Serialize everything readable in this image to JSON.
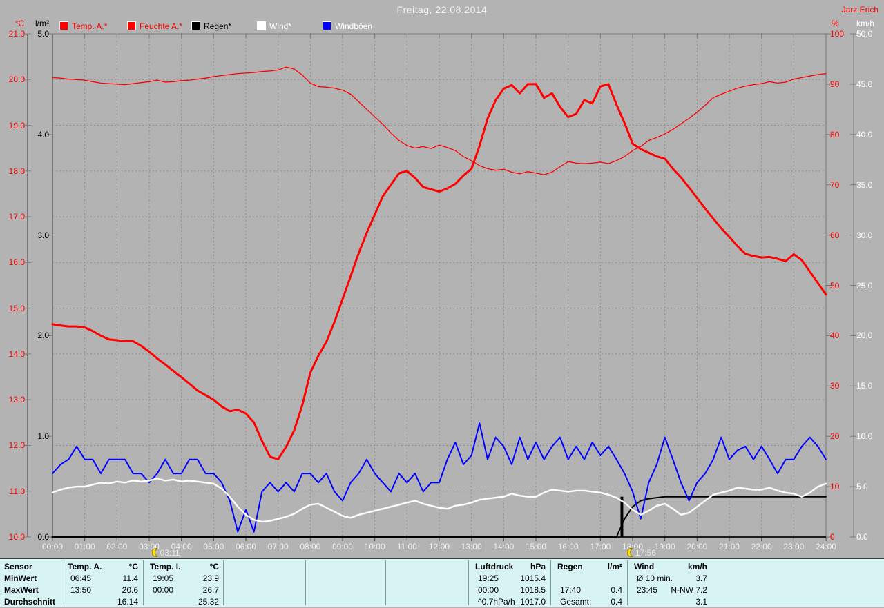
{
  "window": {
    "title": "Freitag, 22.08.2014",
    "author": "Jarz Erich"
  },
  "legend": {
    "items": [
      {
        "label": "Temp. A.*",
        "swatch": "#ff0000",
        "text_color": "#ff0000"
      },
      {
        "label": "Feuchte A.*",
        "swatch": "#ff0000",
        "text_color": "#ff0000"
      },
      {
        "label": "Regen*",
        "swatch": "#000000",
        "text_color": "#000000"
      },
      {
        "label": "Wind*",
        "swatch": "#ffffff",
        "text_color": "#ffffff"
      },
      {
        "label": "Windböen",
        "swatch": "#0000ff",
        "text_color": "#ffffff"
      }
    ]
  },
  "axes": {
    "tempC": {
      "unit": "°C",
      "min": 10,
      "max": 21,
      "step": 1,
      "decimals": 1,
      "color": "#ff0000"
    },
    "rain_lm2": {
      "unit": "l/m²",
      "min": 0,
      "max": 5,
      "step": 1,
      "decimals": 1,
      "color": "#000000"
    },
    "humidity_pct": {
      "unit": "%",
      "min": 0,
      "max": 100,
      "step": 10,
      "decimals": 0,
      "color": "#ff0000"
    },
    "wind_kmh": {
      "unit": "km/h",
      "min": 0,
      "max": 50,
      "step": 5,
      "decimals": 1,
      "color": "#ffffff"
    }
  },
  "x_axis": {
    "hour_labels": [
      "00:00",
      "01:00",
      "02:00",
      "03:00",
      "04:00",
      "05:00",
      "06:00",
      "07:00",
      "08:00",
      "09:00",
      "10:00",
      "11:00",
      "12:00",
      "13:00",
      "14:00",
      "15:00",
      "16:00",
      "17:00",
      "18:00",
      "19:00",
      "20:00",
      "21:00",
      "22:00",
      "23:00",
      "24:00"
    ],
    "markers": [
      {
        "time": "03:11"
      },
      {
        "time": "17:56"
      }
    ]
  },
  "chart_data": {
    "type": "line",
    "title": "Freitag, 22.08.2014",
    "x_unit": "hours",
    "x_range": [
      0,
      24
    ],
    "x_step_hours": 0.25,
    "grid": true,
    "series": [
      {
        "name": "Feuchte A.",
        "axis": "humidity_pct",
        "color": "#ff0000",
        "width": 1.3,
        "values": [
          91.3,
          91.2,
          91.0,
          90.9,
          90.8,
          90.5,
          90.2,
          90.1,
          90.0,
          89.9,
          90.1,
          90.3,
          90.5,
          90.8,
          90.4,
          90.5,
          90.7,
          90.8,
          91.0,
          91.2,
          91.5,
          91.7,
          91.9,
          92.1,
          92.2,
          92.3,
          92.5,
          92.6,
          92.8,
          93.4,
          93.0,
          91.8,
          90.2,
          89.5,
          89.4,
          89.2,
          88.8,
          88.0,
          86.5,
          85.0,
          83.5,
          82.0,
          80.3,
          78.8,
          77.8,
          77.3,
          77.6,
          77.2,
          77.9,
          77.4,
          76.8,
          75.6,
          74.8,
          73.8,
          73.2,
          72.9,
          73.1,
          72.5,
          72.2,
          72.6,
          72.3,
          72.0,
          72.5,
          73.6,
          74.6,
          74.3,
          74.2,
          74.3,
          74.5,
          74.2,
          74.8,
          75.6,
          76.8,
          77.6,
          78.8,
          79.4,
          80.1,
          81.0,
          82.1,
          83.2,
          84.4,
          85.8,
          87.3,
          88.0,
          88.6,
          89.2,
          89.6,
          89.9,
          90.1,
          90.5,
          90.2,
          90.4,
          91.0,
          91.3,
          91.6,
          91.9,
          92.1
        ]
      },
      {
        "name": "Regen (kumuliert)",
        "axis": "rain_lm2",
        "color": "#000000",
        "width": 2,
        "values": [
          0,
          0,
          0,
          0,
          0,
          0,
          0,
          0,
          0,
          0,
          0,
          0,
          0,
          0,
          0,
          0,
          0,
          0,
          0,
          0,
          0,
          0,
          0,
          0,
          0,
          0,
          0,
          0,
          0,
          0,
          0,
          0,
          0,
          0,
          0,
          0,
          0,
          0,
          0,
          0,
          0,
          0,
          0,
          0,
          0,
          0,
          0,
          0,
          0,
          0,
          0,
          0,
          0,
          0,
          0,
          0,
          0,
          0,
          0,
          0,
          0,
          0,
          0,
          0,
          0,
          0,
          0,
          0,
          0,
          0,
          0,
          0.18,
          0.3,
          0.36,
          0.38,
          0.39,
          0.4,
          0.4,
          0.4,
          0.4,
          0.4,
          0.4,
          0.4,
          0.4,
          0.4,
          0.4,
          0.4,
          0.4,
          0.4,
          0.4,
          0.4,
          0.4,
          0.4,
          0.4,
          0.4,
          0.4,
          0.4
        ]
      },
      {
        "name": "Windböen",
        "axis": "wind_kmh",
        "color": "#0000ff",
        "width": 2,
        "values": [
          6.3,
          7.2,
          7.7,
          9.0,
          7.7,
          7.7,
          6.3,
          7.7,
          7.7,
          7.7,
          6.3,
          6.3,
          5.4,
          6.3,
          7.7,
          6.3,
          6.3,
          7.7,
          7.7,
          6.3,
          6.3,
          5.4,
          3.6,
          0.5,
          2.7,
          0.5,
          4.5,
          5.4,
          4.5,
          5.4,
          4.5,
          6.3,
          6.3,
          5.4,
          6.3,
          4.5,
          3.6,
          5.4,
          6.3,
          7.7,
          6.3,
          5.4,
          4.5,
          6.3,
          5.4,
          6.3,
          4.5,
          5.4,
          5.4,
          7.7,
          9.4,
          7.2,
          8.1,
          11.3,
          7.7,
          9.9,
          9.0,
          7.2,
          9.9,
          7.7,
          9.4,
          7.7,
          9.0,
          9.9,
          7.7,
          9.0,
          7.7,
          9.4,
          8.1,
          9.0,
          7.7,
          6.3,
          4.5,
          1.8,
          5.4,
          7.2,
          9.9,
          7.7,
          5.4,
          3.6,
          5.4,
          6.3,
          7.7,
          9.9,
          7.7,
          8.6,
          9.0,
          7.7,
          9.0,
          7.7,
          6.3,
          7.7,
          7.7,
          9.0,
          9.9,
          9.0,
          7.7
        ]
      },
      {
        "name": "Wind",
        "axis": "wind_kmh",
        "color": "#ffffff",
        "width": 2.4,
        "values": [
          4.4,
          4.7,
          4.9,
          5.0,
          5.0,
          5.2,
          5.4,
          5.3,
          5.5,
          5.4,
          5.6,
          5.5,
          5.6,
          5.8,
          5.6,
          5.7,
          5.5,
          5.6,
          5.5,
          5.4,
          5.3,
          4.8,
          4.0,
          3.0,
          2.2,
          1.7,
          1.5,
          1.6,
          1.8,
          2.0,
          2.3,
          2.8,
          3.2,
          3.3,
          2.9,
          2.5,
          2.1,
          1.9,
          2.2,
          2.4,
          2.6,
          2.8,
          3.0,
          3.2,
          3.4,
          3.6,
          3.3,
          3.1,
          2.9,
          2.8,
          3.1,
          3.2,
          3.4,
          3.7,
          3.8,
          3.9,
          4.0,
          4.3,
          4.1,
          4.0,
          4.0,
          4.4,
          4.7,
          4.6,
          4.5,
          4.6,
          4.6,
          4.5,
          4.4,
          4.2,
          3.9,
          3.4,
          2.7,
          2.2,
          2.6,
          3.1,
          3.3,
          2.8,
          2.2,
          2.4,
          3.0,
          3.6,
          4.2,
          4.4,
          4.6,
          4.9,
          4.8,
          4.7,
          4.7,
          4.9,
          4.6,
          4.4,
          4.3,
          4.0,
          4.4,
          5.0,
          5.3
        ]
      },
      {
        "name": "Temp. A.",
        "axis": "tempC",
        "color": "#ff0000",
        "width": 3,
        "values": [
          14.65,
          14.62,
          14.6,
          14.6,
          14.58,
          14.5,
          14.4,
          14.32,
          14.3,
          14.28,
          14.28,
          14.18,
          14.05,
          13.9,
          13.77,
          13.63,
          13.49,
          13.35,
          13.2,
          13.1,
          13.0,
          12.85,
          12.75,
          12.78,
          12.7,
          12.5,
          12.1,
          11.75,
          11.7,
          11.97,
          12.33,
          12.88,
          13.59,
          13.96,
          14.27,
          14.7,
          15.2,
          15.7,
          16.2,
          16.65,
          17.05,
          17.45,
          17.7,
          17.95,
          18.0,
          17.85,
          17.65,
          17.6,
          17.55,
          17.62,
          17.72,
          17.9,
          18.05,
          18.55,
          19.15,
          19.55,
          19.8,
          19.88,
          19.7,
          19.9,
          19.9,
          19.6,
          19.7,
          19.4,
          19.18,
          19.25,
          19.55,
          19.48,
          19.85,
          19.9,
          19.45,
          19.05,
          18.6,
          18.48,
          18.4,
          18.32,
          18.27,
          18.05,
          17.86,
          17.64,
          17.41,
          17.18,
          16.96,
          16.75,
          16.56,
          16.36,
          16.19,
          16.14,
          16.11,
          16.12,
          16.08,
          16.03,
          16.18,
          16.05,
          15.8,
          15.55,
          15.3
        ]
      }
    ],
    "rain_event": {
      "hour": 17.667,
      "label_time": "17:40",
      "value": 0.4
    }
  },
  "stats_table": {
    "row_labels": [
      "Sensor",
      "MinWert",
      "MaxWert",
      "Durchschnitt"
    ],
    "columns": [
      {
        "header": "Temp. A.",
        "unit": "°C",
        "rows": [
          [
            "06:45",
            "11.4"
          ],
          [
            "13:50",
            "20.6"
          ],
          [
            "",
            "16.14"
          ]
        ]
      },
      {
        "header": "Temp. I.",
        "unit": "°C",
        "rows": [
          [
            "19:05",
            "23.9"
          ],
          [
            "00:00",
            "26.7"
          ],
          [
            "",
            "25.32"
          ]
        ]
      },
      {
        "header": "",
        "unit": "",
        "rows": [
          [
            "",
            ""
          ],
          [
            "",
            ""
          ],
          [
            "",
            ""
          ]
        ]
      },
      {
        "header": "",
        "unit": "",
        "rows": [
          [
            "",
            ""
          ],
          [
            "",
            ""
          ],
          [
            "",
            ""
          ]
        ]
      },
      {
        "header": "",
        "unit": "",
        "rows": [
          [
            "",
            ""
          ],
          [
            "",
            ""
          ],
          [
            "",
            ""
          ]
        ]
      },
      {
        "header": "Luftdruck",
        "unit": "hPa",
        "rows": [
          [
            "19:25",
            "1015.4"
          ],
          [
            "00:00",
            "1018.5"
          ],
          [
            "^0.7hPa/h",
            "1017.0"
          ]
        ]
      },
      {
        "header": "Regen",
        "unit": "l/m²",
        "rows": [
          [
            "",
            ""
          ],
          [
            "17:40",
            "0.4"
          ],
          [
            "Gesamt:",
            "0.4"
          ]
        ]
      },
      {
        "header": "Wind",
        "unit": "km/h",
        "rows": [
          [
            "Ø 10 min.",
            "3.7"
          ],
          [
            "23:45",
            "N-NW 7.2"
          ],
          [
            "",
            "3.1"
          ]
        ]
      }
    ]
  }
}
